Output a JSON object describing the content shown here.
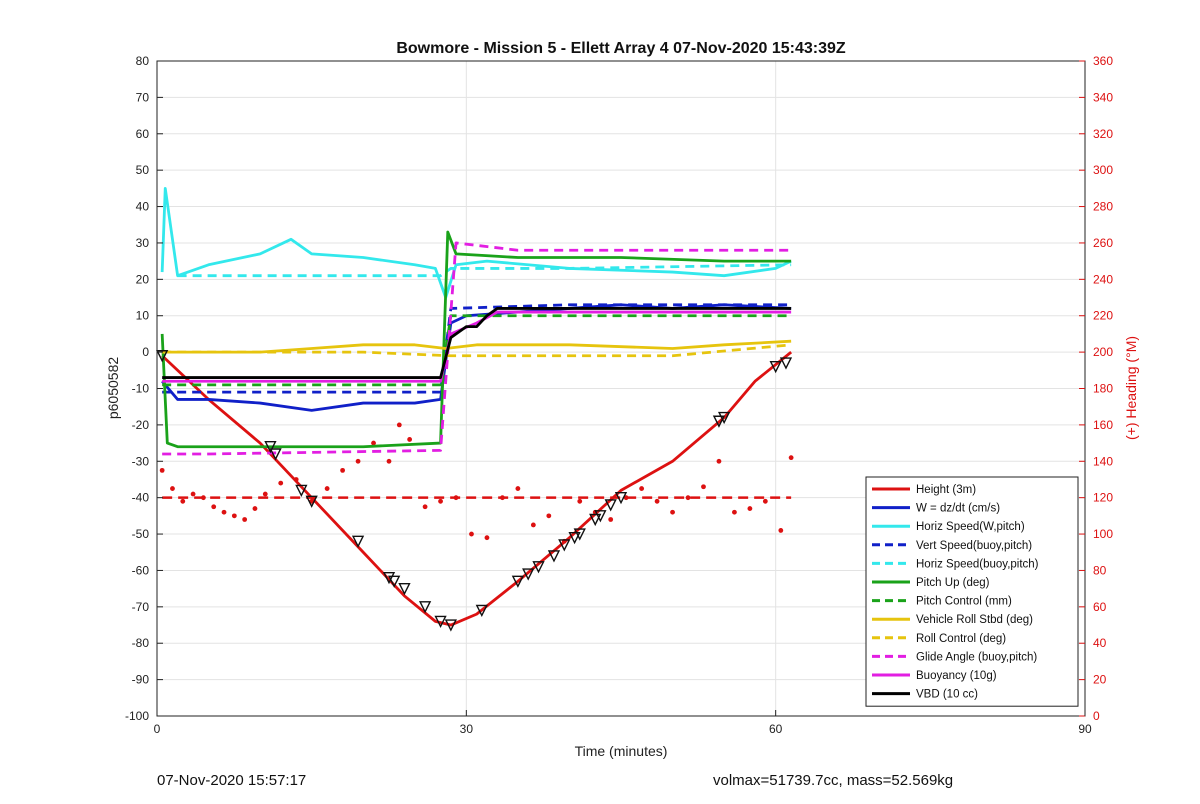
{
  "chart_data": {
    "type": "line",
    "title": "Bowmore - Mission 5 - Ellett Array 4 07-Nov-2020 15:43:39Z",
    "xlabel": "Time (minutes)",
    "ylabel": "p6050582",
    "y2label": "(+) Heading (°M)",
    "xlim": [
      0,
      90
    ],
    "ylim": [
      -100,
      80
    ],
    "y2lim": [
      0,
      360
    ],
    "xticks": [
      "0",
      "30",
      "60",
      "90"
    ],
    "yticks": [
      "-100",
      "-90",
      "-80",
      "-70",
      "-60",
      "-50",
      "-40",
      "-30",
      "-20",
      "-10",
      "0",
      "10",
      "20",
      "30",
      "40",
      "50",
      "60",
      "70",
      "80"
    ],
    "y2ticks": [
      "0",
      "20",
      "40",
      "60",
      "80",
      "100",
      "120",
      "140",
      "160",
      "180",
      "200",
      "220",
      "240",
      "260",
      "280",
      "300",
      "320",
      "340",
      "360"
    ],
    "grid": true,
    "legend_position": "bottom-right",
    "colors": {
      "red": "#dd1111",
      "blue": "#1020c8",
      "cyan": "#33e8ec",
      "green": "#1aa21a",
      "yellow": "#e6c40e",
      "magenta": "#e21ee2",
      "black": "#000000"
    },
    "series": [
      {
        "name": "Height (3m)",
        "color": "#dd1111",
        "style": "solid",
        "x": [
          0.5,
          5,
          10,
          15,
          20,
          24,
          27,
          28.5,
          31,
          35,
          40,
          45,
          50,
          55,
          58,
          61.5
        ],
        "y": [
          -1,
          -13,
          -25,
          -40,
          -55,
          -67,
          -74,
          -75,
          -72,
          -63,
          -51,
          -38,
          -30,
          -18,
          -8,
          0
        ]
      },
      {
        "name": "W = dz/dt (cm/s)",
        "color": "#1020c8",
        "style": "solid",
        "x": [
          0.5,
          2,
          5,
          10,
          15,
          20,
          25,
          27.5,
          28.5,
          30,
          35,
          40,
          45,
          50,
          55,
          61.5
        ],
        "y": [
          -8,
          -13,
          -13,
          -14,
          -16,
          -14,
          -14,
          -13,
          8,
          10,
          11,
          12,
          13,
          12,
          13,
          12
        ]
      },
      {
        "name": "Horiz Speed(W,pitch)",
        "color": "#33e8ec",
        "style": "solid",
        "x": [
          0.5,
          0.8,
          2,
          5,
          10,
          13,
          15,
          20,
          25,
          27,
          28,
          29,
          32,
          40,
          50,
          55,
          60,
          61.5
        ],
        "y": [
          22,
          45,
          21,
          24,
          27,
          31,
          27,
          26,
          24,
          23,
          15,
          24,
          25,
          23,
          22,
          21,
          23,
          25
        ]
      },
      {
        "name": "Vert Speed(buoy,pitch)",
        "color": "#1020c8",
        "style": "dashed",
        "x": [
          0.5,
          10,
          20,
          27.5,
          28.5,
          40,
          61.5
        ],
        "y": [
          -11,
          -11,
          -11,
          -11,
          12,
          13,
          13
        ]
      },
      {
        "name": "Horiz Speed(buoy,pitch)",
        "color": "#33e8ec",
        "style": "dashed",
        "x": [
          2,
          10,
          20,
          27.5,
          28.5,
          40,
          61.5
        ],
        "y": [
          21,
          21,
          21,
          21,
          23,
          23,
          24
        ]
      },
      {
        "name": "Pitch Up (deg)",
        "color": "#1aa21a",
        "style": "solid",
        "x": [
          0.5,
          1,
          2,
          10,
          20,
          27.5,
          28.2,
          29,
          35,
          45,
          55,
          61.5
        ],
        "y": [
          5,
          -25,
          -26,
          -26,
          -26,
          -25,
          33,
          27,
          26,
          26,
          25,
          25
        ]
      },
      {
        "name": "Pitch Control (mm)",
        "color": "#1aa21a",
        "style": "dashed",
        "x": [
          0.5,
          10,
          27.5,
          28.5,
          40,
          61.5
        ],
        "y": [
          -9,
          -9,
          -9,
          10,
          10,
          10
        ]
      },
      {
        "name": "Vehicle Roll Stbd (deg)",
        "color": "#e6c40e",
        "style": "solid",
        "x": [
          0.5,
          10,
          15,
          20,
          25,
          28,
          31,
          40,
          50,
          55,
          61.5
        ],
        "y": [
          0,
          0,
          1,
          2,
          2,
          1,
          2,
          2,
          1,
          2,
          3
        ]
      },
      {
        "name": "Roll Control (deg)",
        "color": "#e6c40e",
        "style": "dashed",
        "x": [
          0.5,
          10,
          20,
          28.5,
          40,
          50,
          61.5
        ],
        "y": [
          0,
          0,
          0,
          -1,
          -1,
          -1,
          2
        ]
      },
      {
        "name": "Glide Angle (buoy,pitch)",
        "color": "#e21ee2",
        "style": "dashed",
        "x": [
          0.5,
          5,
          27.5,
          29,
          35,
          45,
          55,
          61.5
        ],
        "y": [
          -28,
          -28,
          -27,
          30,
          28,
          28,
          28,
          28
        ]
      },
      {
        "name": "Buoyancy (10g)",
        "color": "#e21ee2",
        "style": "solid",
        "x": [
          0.5,
          27.5,
          28.5,
          31,
          33,
          61.5
        ],
        "y": [
          -8,
          -8,
          5,
          8,
          11,
          11
        ]
      },
      {
        "name": "VBD (10 cc)",
        "color": "#000000",
        "style": "solid",
        "x": [
          0.5,
          27.5,
          28.5,
          30,
          31,
          32,
          33,
          61.5
        ],
        "y": [
          -7,
          -7,
          4,
          7,
          7,
          10,
          12,
          12
        ]
      }
    ],
    "heading_reference": {
      "color": "#dd1111",
      "style": "dashed",
      "x": [
        0.5,
        61.5
      ],
      "y2": [
        120,
        120
      ]
    },
    "heading_points": {
      "color": "#dd1111",
      "x": [
        0.5,
        1.5,
        2.5,
        3.5,
        4.5,
        5.5,
        6.5,
        7.5,
        8.5,
        9.5,
        10.5,
        12,
        13.5,
        15,
        16.5,
        18,
        19.5,
        21,
        22.5,
        23.5,
        24.5,
        26,
        27.5,
        29,
        30.5,
        32,
        33.5,
        35,
        36.5,
        38,
        39.5,
        41,
        42.5,
        44,
        45.5,
        47,
        48.5,
        50,
        51.5,
        53,
        54.5,
        56,
        57.5,
        59,
        60.5,
        61.5
      ],
      "y2": [
        135,
        125,
        118,
        122,
        120,
        115,
        112,
        110,
        108,
        114,
        122,
        128,
        130,
        118,
        125,
        135,
        140,
        150,
        140,
        160,
        152,
        115,
        118,
        120,
        100,
        98,
        120,
        125,
        105,
        110,
        96,
        118,
        112,
        108,
        120,
        125,
        118,
        112,
        120,
        126,
        140,
        112,
        114,
        118,
        102,
        142
      ]
    },
    "height_markers": {
      "x": [
        0.5,
        11,
        11.5,
        14,
        15,
        19.5,
        22.5,
        23,
        24,
        26,
        27.5,
        28.5,
        31.5,
        35,
        36,
        37,
        38.5,
        39.5,
        40.5,
        41,
        42.5,
        43,
        44,
        45,
        54.5,
        55,
        60,
        61
      ],
      "y": [
        -1,
        -26,
        -28,
        -38,
        -41,
        -52,
        -62,
        -63,
        -65,
        -70,
        -74,
        -75,
        -71,
        -63,
        -61,
        -59,
        -56,
        -53,
        -51,
        -50,
        -46,
        -45,
        -42,
        -40,
        -19,
        -18,
        -4,
        -3
      ]
    }
  },
  "footer": {
    "timestamp": "07-Nov-2020 15:57:17",
    "summary": "volmax=51739.7cc, mass=52.569kg"
  }
}
